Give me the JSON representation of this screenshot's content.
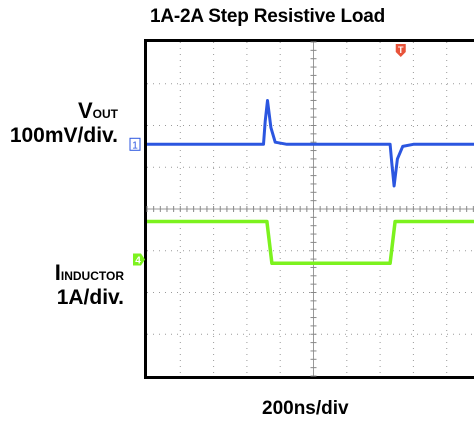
{
  "chart_data": {
    "type": "line",
    "title": "1A-2A Step Resistive Load",
    "xlabel": "200ns/div",
    "series": [
      {
        "name": "VOUT",
        "label_main": "V",
        "label_sub": "OUT",
        "scale": "100mV/div.",
        "marker": "1",
        "color": "#2b56e0",
        "x": [
          0,
          3.5,
          3.55,
          3.62,
          3.72,
          3.85,
          4.2,
          7.3,
          7.35,
          7.42,
          7.52,
          7.68,
          8.0,
          10
        ],
        "y": [
          0,
          0,
          0.55,
          1.05,
          0.4,
          0.05,
          0,
          0,
          -0.45,
          -1.0,
          -0.35,
          -0.05,
          0,
          0
        ]
      },
      {
        "name": "IINDUCTOR",
        "label_main": "I",
        "label_sub": "INDUCTOR",
        "scale": "1A/div.",
        "marker": "4",
        "color": "#7cf21e",
        "x": [
          0,
          3.6,
          3.75,
          7.3,
          7.45,
          10
        ],
        "y": [
          0,
          0,
          -1.0,
          -1.0,
          0,
          0
        ]
      }
    ],
    "trigger_marker": "T",
    "trigger_color": "#e8533a",
    "grid": true,
    "x_divisions": 10,
    "y_divisions": 8
  }
}
